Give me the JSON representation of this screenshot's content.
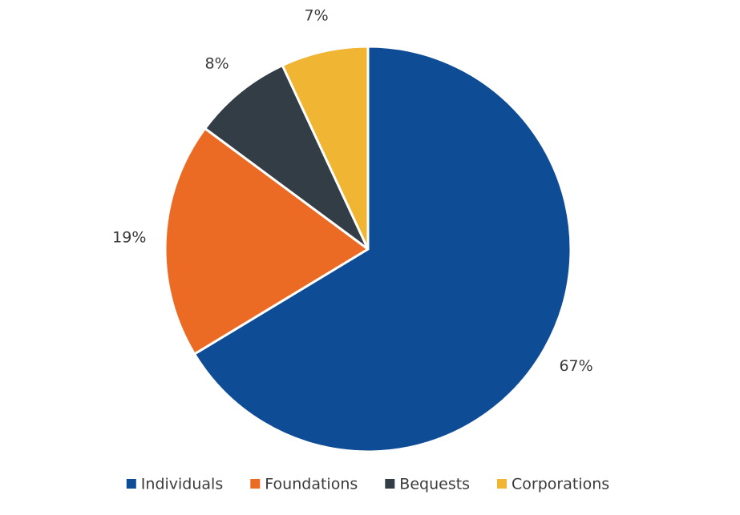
{
  "chart_data": {
    "type": "pie",
    "start_angle": "12 o'clock",
    "direction": "clockwise",
    "legend_position": "bottom",
    "slices": [
      {
        "label": "Individuals",
        "value": 67,
        "value_label": "67%",
        "color": "#0f4c96"
      },
      {
        "label": "Foundations",
        "value": 19,
        "value_label": "19%",
        "color": "#ec6b24"
      },
      {
        "label": "Bequests",
        "value": 8,
        "value_label": "8%",
        "color": "#333d46"
      },
      {
        "label": "Corporations",
        "value": 7,
        "value_label": "7%",
        "color": "#efb533"
      }
    ]
  }
}
